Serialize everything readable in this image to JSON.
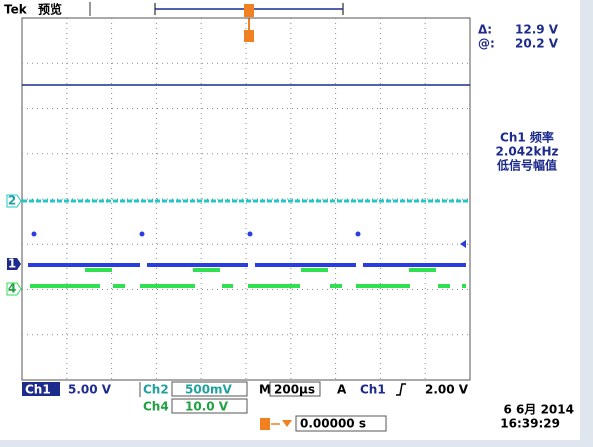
{
  "header": {
    "brand": "Tek",
    "mode": "预览"
  },
  "cursor": {
    "delta_label": "Δ:",
    "delta": "12.9 V",
    "at_label": "@:",
    "at": "20.2 V"
  },
  "measurement": {
    "label": "Ch1 频率",
    "value": "2.042kHz",
    "note": "低信号幅值"
  },
  "channel_markers": {
    "ch2": "2",
    "ch1": "1",
    "ch4": "4"
  },
  "status": {
    "ch1_name": "Ch1",
    "ch1_scale": "5.00 V",
    "ch2_name": "Ch2",
    "ch2_scale": "500mV",
    "ch4_name": "Ch4",
    "ch4_scale": "10.0 V",
    "timebase_label": "M",
    "timebase": "200µs",
    "trigger_label": "A",
    "trigger_source": "Ch1",
    "trigger_level": "2.00 V",
    "position": "0.00000 s",
    "date": "6 6月 2014",
    "time": "16:39:29"
  }
}
